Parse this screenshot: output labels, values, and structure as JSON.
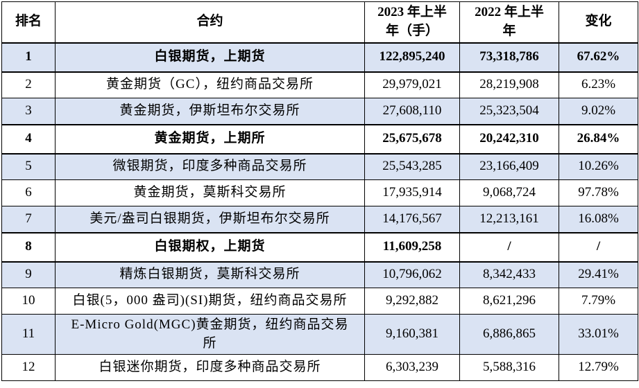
{
  "table": {
    "columns": {
      "rank": "排名",
      "contract": "合约",
      "h1_2023": "2023 年上半\n年（手）",
      "h1_2022": "2022 年上半\n年",
      "change": "变化"
    },
    "rows": [
      {
        "rank": "1",
        "contract": "白银期货，上期货",
        "h1_2023": "122,895,240",
        "h1_2022": "73,318,786",
        "change": "67.62%",
        "emphasis": true
      },
      {
        "rank": "2",
        "contract": "黄金期货（GC），纽约商品交易所",
        "h1_2023": "29,979,021",
        "h1_2022": "28,219,908",
        "change": "6.23%",
        "emphasis": false
      },
      {
        "rank": "3",
        "contract": "黄金期货，伊斯坦布尔交易所",
        "h1_2023": "27,608,110",
        "h1_2022": "25,323,504",
        "change": "9.02%",
        "emphasis": false
      },
      {
        "rank": "4",
        "contract": "黄金期货，上期所",
        "h1_2023": "25,675,678",
        "h1_2022": "20,242,310",
        "change": "26.84%",
        "emphasis": true
      },
      {
        "rank": "5",
        "contract": "微银期货，印度多种商品交易所",
        "h1_2023": "25,543,285",
        "h1_2022": "23,166,409",
        "change": "10.26%",
        "emphasis": false
      },
      {
        "rank": "6",
        "contract": "黄金期货，莫斯科交易所",
        "h1_2023": "17,935,914",
        "h1_2022": "9,068,724",
        "change": "97.78%",
        "emphasis": false
      },
      {
        "rank": "7",
        "contract": "美元/盎司白银期货，伊斯坦布尔交易所",
        "h1_2023": "14,176,567",
        "h1_2022": "12,213,161",
        "change": "16.08%",
        "emphasis": false
      },
      {
        "rank": "8",
        "contract": "白银期权，上期货",
        "h1_2023": "11,609,258",
        "h1_2022": "/",
        "change": "/",
        "emphasis": true
      },
      {
        "rank": "9",
        "contract": "精炼白银期货，莫斯科交易所",
        "h1_2023": "10,796,062",
        "h1_2022": "8,342,433",
        "change": "29.41%",
        "emphasis": false
      },
      {
        "rank": "10",
        "contract": "白银(5，000 盎司)(SI)期货，纽约商品交易所",
        "h1_2023": "9,292,882",
        "h1_2022": "8,621,296",
        "change": "7.79%",
        "emphasis": false
      },
      {
        "rank": "11",
        "contract": "E-Micro Gold(MGC)黄金期货，纽约商品交易\n所",
        "h1_2023": "9,160,381",
        "h1_2022": "6,886,865",
        "change": "33.01%",
        "emphasis": false
      },
      {
        "rank": "12",
        "contract": "白银迷你期货，印度多种商品交易所",
        "h1_2023": "6,303,239",
        "h1_2022": "5,588,316",
        "change": "12.79%",
        "emphasis": false
      }
    ]
  },
  "colors": {
    "row_shade": "#dae3f3",
    "border": "#000000",
    "text": "#000000"
  }
}
